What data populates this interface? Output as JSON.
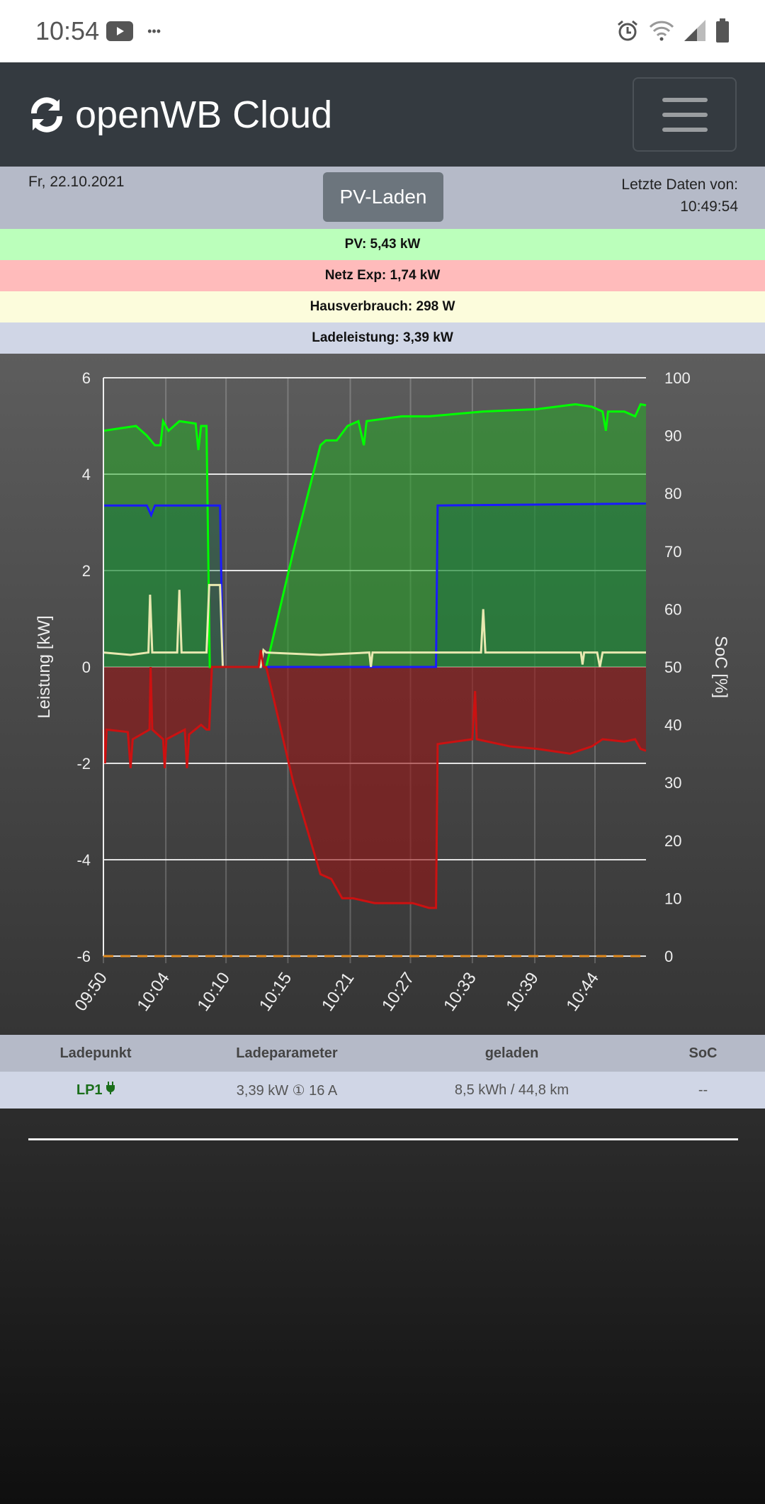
{
  "status_bar": {
    "time": "10:54",
    "icons": [
      "youtube-icon",
      "more-icon",
      "alarm-icon",
      "wifi-icon",
      "signal-icon",
      "battery-icon"
    ]
  },
  "navbar": {
    "brand": "openWB Cloud",
    "icon": "sync-icon",
    "menu": "hamburger-menu-icon"
  },
  "info": {
    "date": "Fr, 22.10.2021",
    "mode_button": "PV-Laden",
    "last_data_label": "Letzte Daten von:",
    "last_data_time": "10:49:54"
  },
  "power_bars": [
    {
      "label": "PV: 5,43 kW",
      "color": "#bbffbb"
    },
    {
      "label": "Netz Exp: 1,74 kW",
      "color": "#ffbbbb"
    },
    {
      "label": "Hausverbrauch: 298 W",
      "color": "#fcfcdc"
    },
    {
      "label": "Ladeleistung: 3,39 kW",
      "color": "#d0d6e6"
    }
  ],
  "chart_data": {
    "type": "line",
    "ylabel": "Leistung [kW]",
    "y2label": "SoC [%]",
    "ylim": [
      -6,
      6
    ],
    "y2lim": [
      0,
      100
    ],
    "yticks": [
      "6",
      "4",
      "2",
      "0",
      "-2",
      "-4",
      "-6"
    ],
    "y2ticks": [
      "100",
      "90",
      "80",
      "70",
      "60",
      "50",
      "40",
      "30",
      "20",
      "10",
      "0"
    ],
    "x_range": [
      0,
      100
    ],
    "xticks": [
      {
        "pos": 0,
        "label": "09:50"
      },
      {
        "pos": 11.5,
        "label": "10:04"
      },
      {
        "pos": 22.6,
        "label": "10:10"
      },
      {
        "pos": 34,
        "label": "10:15"
      },
      {
        "pos": 45.5,
        "label": "10:21"
      },
      {
        "pos": 56.6,
        "label": "10:27"
      },
      {
        "pos": 68,
        "label": "10:33"
      },
      {
        "pos": 79.5,
        "label": "10:39"
      },
      {
        "pos": 90.6,
        "label": "10:44"
      }
    ],
    "series": [
      {
        "name": "PV",
        "color": "#00ff00",
        "fill": "rgba(40,170,40,0.55)",
        "points": [
          [
            0,
            4.9
          ],
          [
            3,
            4.95
          ],
          [
            6,
            5.0
          ],
          [
            8,
            4.8
          ],
          [
            9.5,
            4.6
          ],
          [
            10.5,
            4.6
          ],
          [
            11,
            5.1
          ],
          [
            12,
            4.9
          ],
          [
            14,
            5.1
          ],
          [
            17,
            5.05
          ],
          [
            17.5,
            4.5
          ],
          [
            18,
            5.0
          ],
          [
            19,
            5.0
          ],
          [
            19.6,
            0
          ],
          [
            30,
            0
          ],
          [
            35,
            2.4
          ],
          [
            40,
            4.6
          ],
          [
            41,
            4.7
          ],
          [
            43,
            4.7
          ],
          [
            45,
            5.0
          ],
          [
            47,
            5.1
          ],
          [
            48,
            4.6
          ],
          [
            48.5,
            5.1
          ],
          [
            55,
            5.2
          ],
          [
            60,
            5.2
          ],
          [
            70,
            5.3
          ],
          [
            80,
            5.35
          ],
          [
            87,
            5.45
          ],
          [
            90,
            5.4
          ],
          [
            92,
            5.3
          ],
          [
            92.6,
            4.9
          ],
          [
            93,
            5.3
          ],
          [
            96,
            5.3
          ],
          [
            98,
            5.2
          ],
          [
            99,
            5.45
          ],
          [
            100,
            5.43
          ]
        ]
      },
      {
        "name": "Ladeleistung",
        "color": "#1a1aff",
        "fill": "rgba(20,110,70,0.35)",
        "points": [
          [
            0,
            3.35
          ],
          [
            8,
            3.35
          ],
          [
            8.8,
            3.15
          ],
          [
            9.5,
            3.35
          ],
          [
            19.5,
            3.35
          ],
          [
            21.5,
            3.35
          ],
          [
            22,
            0
          ],
          [
            61.3,
            0
          ],
          [
            61.6,
            3.35
          ],
          [
            100,
            3.39
          ]
        ]
      },
      {
        "name": "Hausverbrauch",
        "color": "#e8e8b0",
        "fill": "none",
        "points": [
          [
            0,
            0.3
          ],
          [
            5,
            0.25
          ],
          [
            8.3,
            0.3
          ],
          [
            8.6,
            1.5
          ],
          [
            9,
            0.3
          ],
          [
            13.6,
            0.3
          ],
          [
            14,
            1.6
          ],
          [
            14.4,
            0.3
          ],
          [
            19,
            0.3
          ],
          [
            19.5,
            1.7
          ],
          [
            21.5,
            1.7
          ],
          [
            22,
            0
          ],
          [
            29,
            0
          ],
          [
            29.5,
            0.35
          ],
          [
            30,
            0.3
          ],
          [
            40,
            0.25
          ],
          [
            49,
            0.3
          ],
          [
            49.3,
            0
          ],
          [
            49.6,
            0.3
          ],
          [
            69.6,
            0.3
          ],
          [
            70,
            1.2
          ],
          [
            70.4,
            0.3
          ],
          [
            88,
            0.3
          ],
          [
            88.3,
            0.05
          ],
          [
            88.6,
            0.3
          ],
          [
            91,
            0.3
          ],
          [
            91.5,
            0
          ],
          [
            92,
            0.3
          ],
          [
            100,
            0.3
          ]
        ]
      },
      {
        "name": "Netz",
        "color": "#cc1111",
        "fill": "rgba(150,20,20,0.6)",
        "points": [
          [
            0,
            -1.3
          ],
          [
            0.3,
            -2.0
          ],
          [
            0.6,
            -1.3
          ],
          [
            4.5,
            -1.35
          ],
          [
            5,
            -2.1
          ],
          [
            5.4,
            -1.5
          ],
          [
            8.5,
            -1.3
          ],
          [
            8.7,
            0
          ],
          [
            9,
            -1.3
          ],
          [
            11,
            -1.5
          ],
          [
            11.3,
            -2.1
          ],
          [
            11.6,
            -1.5
          ],
          [
            15,
            -1.3
          ],
          [
            15.4,
            -2.1
          ],
          [
            15.8,
            -1.4
          ],
          [
            18,
            -1.2
          ],
          [
            19,
            -1.3
          ],
          [
            19.5,
            -1.3
          ],
          [
            20,
            0
          ],
          [
            28.6,
            0
          ],
          [
            29,
            0.35
          ],
          [
            29.5,
            0
          ],
          [
            30,
            0
          ],
          [
            35,
            -2.4
          ],
          [
            40,
            -4.3
          ],
          [
            42,
            -4.4
          ],
          [
            44,
            -4.8
          ],
          [
            46,
            -4.8
          ],
          [
            50,
            -4.9
          ],
          [
            57,
            -4.9
          ],
          [
            60,
            -5.0
          ],
          [
            61.3,
            -5.0
          ],
          [
            61.6,
            -1.6
          ],
          [
            68,
            -1.5
          ],
          [
            68.5,
            -0.5
          ],
          [
            68.8,
            -1.5
          ],
          [
            75,
            -1.65
          ],
          [
            80,
            -1.7
          ],
          [
            86,
            -1.8
          ],
          [
            90,
            -1.65
          ],
          [
            92,
            -1.5
          ],
          [
            96,
            -1.55
          ],
          [
            98,
            -1.5
          ],
          [
            99,
            -1.7
          ],
          [
            100,
            -1.74
          ]
        ]
      }
    ]
  },
  "table": {
    "headers": [
      "Ladepunkt",
      "Ladeparameter",
      "geladen",
      "SoC"
    ],
    "rows": [
      {
        "lp": "LP1",
        "params": "3,39 kW ① 16 A",
        "charged": "8,5 kWh / 44,8 km",
        "soc": "--"
      }
    ]
  }
}
